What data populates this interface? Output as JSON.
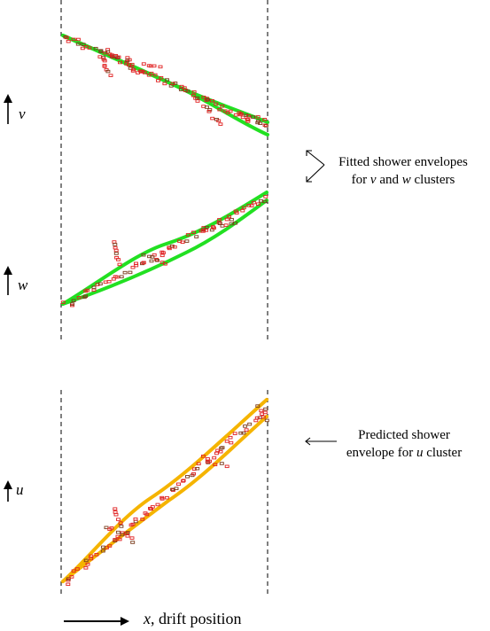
{
  "axes": {
    "v_label": "v",
    "w_label": "w",
    "u_label": "u"
  },
  "annotations": {
    "fitted_line1": "Fitted shower envelopes",
    "fitted_line2_prefix": "for ",
    "fitted_line2_v": "v",
    "fitted_line2_mid": " and ",
    "fitted_line2_w": "w",
    "fitted_line2_suffix": " clusters",
    "predicted_line1": "Predicted shower",
    "predicted_line2_prefix": "envelope for ",
    "predicted_line2_u": "u",
    "predicted_line2_suffix": " cluster"
  },
  "footer": {
    "x_var": "x",
    "x_text": ", drift position"
  },
  "colors": {
    "fitted": "#22e022",
    "predicted": "#f5b400",
    "hits": "#e02020",
    "hits_dark": "#7a3a1a",
    "axis": "#000000"
  }
}
